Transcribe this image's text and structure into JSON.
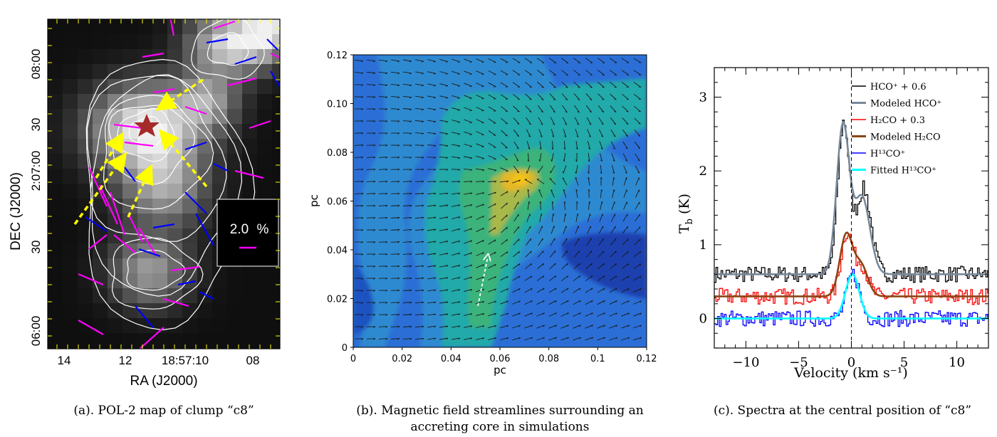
{
  "panels": {
    "a": {
      "caption": "(a). POL-2 map of clump “c8”",
      "chart_data": {
        "type": "heatmap",
        "title": "",
        "xlabel": "RA (J2000)",
        "ylabel": "DEC (J2000)",
        "xticks": [
          "14",
          "12",
          "18:57:10",
          "08"
        ],
        "yticks": [
          "06:00",
          "30",
          "2:07:00",
          "30",
          "08:00"
        ],
        "legend_box": {
          "label": "2.0",
          "unit": "%"
        },
        "vector_colors": {
          "magenta": "#ff00ff",
          "blue": "#0000ff"
        },
        "star_color": "#a52a2a",
        "arrow_color": "#ffff00"
      }
    },
    "b": {
      "caption_lines": [
        "(b). Magnetic field streamlines surrounding an",
        "accreting core in simulations"
      ],
      "chart_data": {
        "type": "heatmap",
        "title": "",
        "xlabel": "pc",
        "ylabel": "pc",
        "xlim": [
          0,
          0.12
        ],
        "ylim": [
          0,
          0.12
        ],
        "xticks": [
          "0",
          "0.02",
          "0.04",
          "0.06",
          "0.08",
          "0.1",
          "0.12"
        ],
        "yticks": [
          "0",
          "0.02",
          "0.04",
          "0.06",
          "0.08",
          "0.10",
          "0.12"
        ],
        "peak": [
          0.069,
          0.069
        ],
        "arrow": {
          "from": [
            0.051,
            0.017
          ],
          "to": [
            0.055,
            0.037
          ]
        }
      }
    },
    "c": {
      "caption": "(c). Spectra at the central position of “c8”",
      "chart_data": {
        "type": "line",
        "title": "",
        "xlabel": "Velocity (km s⁻¹)",
        "ylabel": "T_b (K)",
        "xlim": [
          -13,
          13
        ],
        "ylim": [
          -0.4,
          3.4
        ],
        "xticks": [
          -10,
          -5,
          0,
          5,
          10
        ],
        "yticks": [
          0,
          1,
          2,
          3
        ],
        "series": [
          {
            "name": "HCO⁺ + 0.6",
            "color": "#000000",
            "offset": 0.6,
            "peaks": [
              {
                "v": -0.8,
                "T": 2.05,
                "w": 0.55
              },
              {
                "v": 1.1,
                "T": 1.15,
                "w": 0.7
              }
            ]
          },
          {
            "name": "Modeled HCO⁺",
            "color": "#778899",
            "offset": 0.6,
            "peaks": [
              {
                "v": -0.8,
                "T": 2.0,
                "w": 0.6
              },
              {
                "v": 1.0,
                "T": 1.05,
                "w": 0.75
              }
            ]
          },
          {
            "name": "H₂CO + 0.3",
            "color": "#ff0000",
            "offset": 0.3,
            "peaks": [
              {
                "v": -0.5,
                "T": 0.85,
                "w": 0.55
              },
              {
                "v": 0.9,
                "T": 0.42,
                "w": 0.6
              }
            ]
          },
          {
            "name": "Modeled H₂CO",
            "color": "#8b4513",
            "offset": 0.3,
            "peaks": [
              {
                "v": -0.5,
                "T": 0.82,
                "w": 0.6
              },
              {
                "v": 0.9,
                "T": 0.42,
                "w": 0.65
              }
            ]
          },
          {
            "name": "H¹³CO⁺",
            "color": "#0000ff",
            "offset": 0,
            "peaks": [
              {
                "v": 0.1,
                "T": 0.6,
                "w": 0.6
              }
            ]
          },
          {
            "name": "Fitted H¹³CO⁺",
            "color": "#00ffff",
            "offset": 0,
            "peaks": [
              {
                "v": 0.1,
                "T": 0.6,
                "w": 0.65
              }
            ]
          }
        ],
        "reference_line": {
          "x": 0,
          "style": "dashed"
        }
      }
    }
  }
}
